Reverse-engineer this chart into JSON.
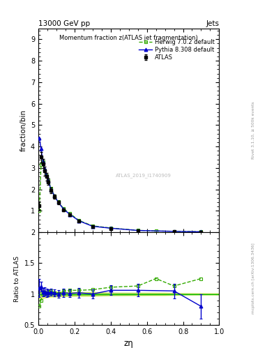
{
  "title_top": "13000 GeV pp",
  "title_right": "Jets",
  "plot_title": "Momentum fraction z(ATLAS jet fragmentation)",
  "xlabel": "zη",
  "ylabel_main": "fraction/bin",
  "ylabel_ratio": "Ratio to ATLAS",
  "right_label_main": "Rivet 3.1.10, ≥ 500k events",
  "right_label_ratio": "mcplots.cern.ch [arXiv:1306.3436]",
  "watermark": "ATLAS_2019_I1740909",
  "atlas_x": [
    0.005,
    0.015,
    0.025,
    0.035,
    0.045,
    0.055,
    0.07,
    0.09,
    0.11,
    0.14,
    0.175,
    0.225,
    0.3,
    0.4,
    0.55,
    0.75,
    0.9
  ],
  "atlas_y": [
    1.25,
    3.5,
    3.2,
    2.85,
    2.6,
    2.35,
    1.95,
    1.65,
    1.4,
    1.05,
    0.82,
    0.52,
    0.28,
    0.18,
    0.08,
    0.04,
    0.02
  ],
  "atlas_yerr": [
    0.2,
    0.25,
    0.22,
    0.2,
    0.18,
    0.15,
    0.12,
    0.1,
    0.08,
    0.07,
    0.05,
    0.04,
    0.02,
    0.015,
    0.008,
    0.005,
    0.004
  ],
  "herwig_x": [
    0.005,
    0.015,
    0.025,
    0.035,
    0.045,
    0.055,
    0.07,
    0.09,
    0.11,
    0.14,
    0.175,
    0.225,
    0.3,
    0.4,
    0.55,
    0.65,
    0.75,
    0.9
  ],
  "herwig_y": [
    1.0,
    3.15,
    3.3,
    2.9,
    2.65,
    2.45,
    2.05,
    1.68,
    1.42,
    1.1,
    0.87,
    0.55,
    0.3,
    0.2,
    0.09,
    0.06,
    0.045,
    0.025
  ],
  "pythia_x": [
    0.005,
    0.015,
    0.025,
    0.035,
    0.045,
    0.055,
    0.07,
    0.09,
    0.11,
    0.14,
    0.175,
    0.225,
    0.3,
    0.4,
    0.55,
    0.75,
    0.9
  ],
  "pythia_y": [
    4.4,
    3.9,
    3.3,
    2.95,
    2.65,
    2.4,
    2.0,
    1.68,
    1.4,
    1.07,
    0.83,
    0.53,
    0.28,
    0.19,
    0.085,
    0.042,
    0.022
  ],
  "atlas_color": "#000000",
  "herwig_color": "#33aa00",
  "pythia_color": "#0000cc",
  "ratio_herwig_x": [
    0.005,
    0.015,
    0.025,
    0.035,
    0.045,
    0.055,
    0.07,
    0.09,
    0.11,
    0.14,
    0.175,
    0.225,
    0.3,
    0.4,
    0.55,
    0.65,
    0.75,
    0.9
  ],
  "ratio_herwig_y": [
    0.8,
    0.9,
    1.03,
    1.02,
    1.02,
    1.04,
    1.05,
    1.02,
    1.01,
    1.05,
    1.06,
    1.06,
    1.07,
    1.11,
    1.13,
    1.25,
    1.13,
    1.25
  ],
  "ratio_pythia_x": [
    0.005,
    0.015,
    0.025,
    0.035,
    0.045,
    0.055,
    0.07,
    0.09,
    0.11,
    0.14,
    0.175,
    0.225,
    0.3,
    0.4,
    0.55,
    0.75,
    0.9
  ],
  "ratio_pythia_y": [
    1.1,
    1.12,
    1.03,
    1.04,
    1.02,
    1.02,
    1.03,
    1.02,
    1.0,
    1.02,
    1.01,
    1.02,
    1.0,
    1.06,
    1.06,
    1.05,
    0.8
  ],
  "ratio_pythia_yerr": [
    0.15,
    0.08,
    0.07,
    0.07,
    0.07,
    0.06,
    0.06,
    0.06,
    0.06,
    0.07,
    0.06,
    0.08,
    0.07,
    0.08,
    0.1,
    0.12,
    0.2
  ],
  "band_x": [
    0.0,
    0.02,
    0.05,
    0.1,
    0.2,
    0.3,
    0.4,
    0.5,
    0.6,
    0.7,
    0.8,
    0.9,
    1.0
  ],
  "band_top": [
    1.07,
    1.07,
    1.05,
    1.04,
    1.03,
    1.03,
    1.02,
    1.02,
    1.02,
    1.02,
    1.01,
    1.01,
    1.01
  ],
  "band_bot": [
    0.93,
    0.93,
    0.95,
    0.96,
    0.97,
    0.97,
    0.98,
    0.98,
    0.98,
    0.98,
    0.99,
    0.99,
    0.99
  ],
  "ylim_main": [
    0,
    9.5
  ],
  "ylim_ratio": [
    0.5,
    2.0
  ],
  "xlim": [
    0.0,
    1.0
  ],
  "yticks_main": [
    1,
    2,
    3,
    4,
    5,
    6,
    7,
    8,
    9
  ],
  "bg_color": "#ffffff",
  "inner_bg": "#ffffff"
}
